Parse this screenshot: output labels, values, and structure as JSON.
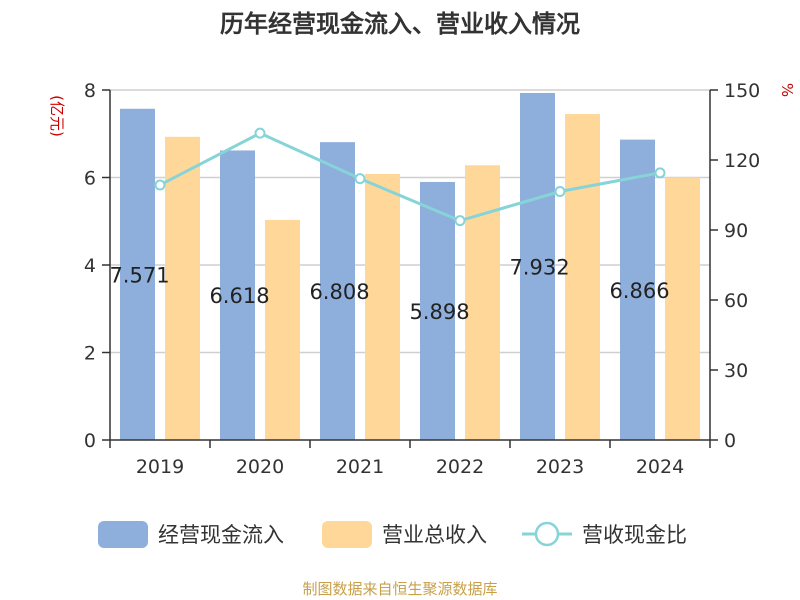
{
  "chart_data": {
    "type": "bar",
    "title": "历年经营现金流入、营业收入情况",
    "categories": [
      "2019",
      "2020",
      "2021",
      "2022",
      "2023",
      "2024"
    ],
    "y_left": {
      "unit": "(亿元)",
      "ylim": [
        0,
        8
      ],
      "ticks": [
        0,
        2,
        4,
        6,
        8
      ]
    },
    "y_right": {
      "unit": "%",
      "ylim": [
        0,
        150
      ],
      "ticks": [
        0,
        30,
        60,
        90,
        120,
        150
      ]
    },
    "series": [
      {
        "name": "经营现金流入",
        "type": "bar",
        "axis": "left",
        "color": "#8eaedb",
        "values": [
          7.571,
          6.618,
          6.808,
          5.898,
          7.932,
          6.866
        ],
        "labels": [
          "7.571",
          "6.618",
          "6.808",
          "5.898",
          "7.932",
          "6.866"
        ]
      },
      {
        "name": "营业总收入",
        "type": "bar",
        "axis": "left",
        "color": "#ffd899",
        "values": [
          6.93,
          5.03,
          6.08,
          6.28,
          7.45,
          6.0
        ]
      },
      {
        "name": "营收现金比",
        "type": "line",
        "axis": "right",
        "color": "#86d4d8",
        "values": [
          109.3,
          131.5,
          112.0,
          94.0,
          106.5,
          114.5
        ]
      }
    ],
    "grid": true,
    "legend_position": "bottom"
  },
  "footer": "制图数据来自恒生聚源数据库",
  "colors": {
    "unit_red": "#cc0000",
    "footer_gold": "#c8a04a"
  }
}
